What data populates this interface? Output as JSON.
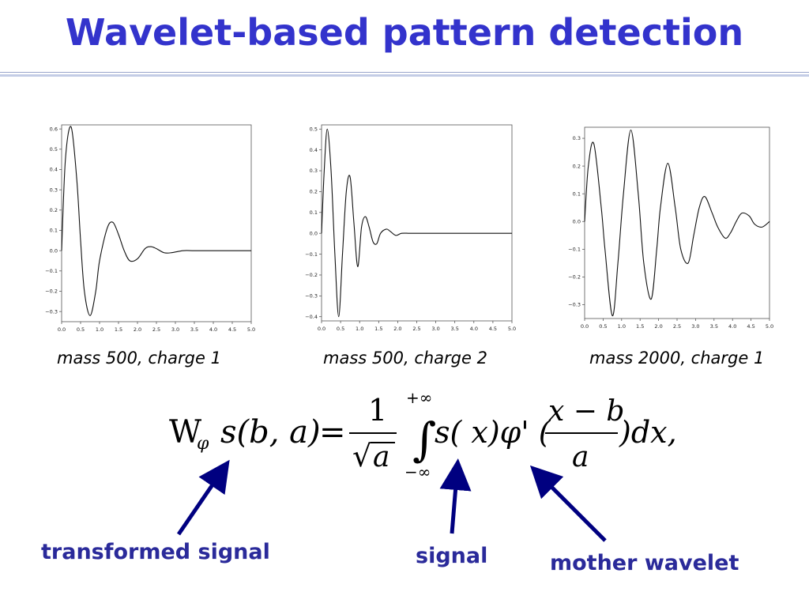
{
  "slide": {
    "title": "Wavelet-based pattern detection",
    "title_color": "#3333cc",
    "accent_color": "#000080"
  },
  "chart_data": [
    {
      "type": "line",
      "caption": "mass 500, charge 1",
      "xlim": [
        0.0,
        5.0
      ],
      "ylim": [
        -0.35,
        0.62
      ],
      "x_ticks": [
        "0.0",
        "0.5",
        "1.0",
        "1.5",
        "2.0",
        "2.5",
        "3.0",
        "3.5",
        "4.0",
        "4.5",
        "5.0"
      ],
      "y_ticks": [
        "0.6",
        "0.5",
        "0.4",
        "0.3",
        "0.2",
        "0.1",
        "0.0",
        "−0.1",
        "−0.2",
        "−0.3"
      ],
      "y_tick_values": [
        0.6,
        0.5,
        0.4,
        0.3,
        0.2,
        0.1,
        0.0,
        -0.1,
        -0.2,
        -0.3
      ],
      "x": [
        0.0,
        0.1,
        0.25,
        0.4,
        0.5,
        0.6,
        0.75,
        0.9,
        1.0,
        1.2,
        1.35,
        1.5,
        1.65,
        1.8,
        2.0,
        2.2,
        2.35,
        2.5,
        2.7,
        2.9,
        3.2,
        3.5,
        4.0,
        4.5,
        5.0
      ],
      "y": [
        0.0,
        0.45,
        0.61,
        0.35,
        0.05,
        -0.2,
        -0.32,
        -0.2,
        -0.05,
        0.11,
        0.14,
        0.08,
        0.0,
        -0.05,
        -0.04,
        0.01,
        0.02,
        0.01,
        -0.01,
        -0.01,
        0.0,
        0.0,
        0.0,
        0.0,
        0.0
      ]
    },
    {
      "type": "line",
      "caption": "mass 500, charge 2",
      "xlim": [
        0.0,
        5.0
      ],
      "ylim": [
        -0.42,
        0.52
      ],
      "x_ticks": [
        "0.0",
        "0.5",
        "1.0",
        "1.5",
        "2.0",
        "2.5",
        "3.0",
        "3.5",
        "4.0",
        "4.5",
        "5.0"
      ],
      "y_ticks": [
        "0.5",
        "0.4",
        "0.3",
        "0.2",
        "0.1",
        "0.0",
        "−0.1",
        "−0.2",
        "−0.3",
        "−0.4"
      ],
      "y_tick_values": [
        0.5,
        0.4,
        0.3,
        0.2,
        0.1,
        0.0,
        -0.1,
        -0.2,
        -0.3,
        -0.4
      ],
      "x": [
        0.0,
        0.07,
        0.15,
        0.25,
        0.35,
        0.45,
        0.55,
        0.65,
        0.75,
        0.85,
        0.95,
        1.05,
        1.15,
        1.25,
        1.35,
        1.45,
        1.55,
        1.7,
        1.8,
        1.95,
        2.1,
        2.3,
        2.5,
        3.0,
        3.5,
        4.0,
        5.0
      ],
      "y": [
        0.0,
        0.3,
        0.5,
        0.3,
        -0.1,
        -0.4,
        -0.1,
        0.2,
        0.27,
        0.05,
        -0.16,
        0.03,
        0.08,
        0.03,
        -0.04,
        -0.05,
        0.0,
        0.02,
        0.01,
        -0.01,
        0.0,
        0.0,
        0.0,
        0.0,
        0.0,
        0.0,
        0.0
      ]
    },
    {
      "type": "line",
      "caption": "mass 2000, charge 1",
      "xlim": [
        0.0,
        5.0
      ],
      "ylim": [
        -0.35,
        0.34
      ],
      "x_ticks": [
        "0.0",
        "0.5",
        "1.0",
        "1.5",
        "2.0",
        "2.5",
        "3.0",
        "3.5",
        "4.0",
        "4.5",
        "5.0"
      ],
      "y_ticks": [
        "0.3",
        "0.2",
        "0.1",
        "0.0",
        "−0.1",
        "−0.2",
        "−0.3"
      ],
      "y_tick_values": [
        0.3,
        0.2,
        0.1,
        0.0,
        -0.1,
        -0.2,
        -0.3
      ],
      "x": [
        0.0,
        0.1,
        0.25,
        0.45,
        0.55,
        0.75,
        0.9,
        1.05,
        1.25,
        1.45,
        1.6,
        1.8,
        1.95,
        2.05,
        2.25,
        2.45,
        2.6,
        2.8,
        2.95,
        3.1,
        3.25,
        3.45,
        3.6,
        3.8,
        3.95,
        4.1,
        4.25,
        4.45,
        4.6,
        4.8,
        5.0
      ],
      "y": [
        0.0,
        0.2,
        0.28,
        0.05,
        -0.1,
        -0.34,
        -0.15,
        0.1,
        0.33,
        0.1,
        -0.15,
        -0.28,
        -0.1,
        0.05,
        0.21,
        0.05,
        -0.1,
        -0.15,
        -0.05,
        0.05,
        0.09,
        0.03,
        -0.02,
        -0.06,
        -0.04,
        0.0,
        0.03,
        0.02,
        -0.01,
        -0.02,
        0.0
      ]
    }
  ],
  "formula": {
    "lhs": "W",
    "lhs_sub": "φ",
    "lhs_args": "s(b, a)",
    "equals": "=",
    "frac_num": "1",
    "sqrt_sym": "√",
    "frac_den": "a",
    "int_upper": "+∞",
    "int_lower": "−∞",
    "integral": "∫",
    "integrand": "s( x)φ' (",
    "inner_num": "x − b",
    "inner_den": "a",
    "tail": ")dx,"
  },
  "annotations": {
    "transformed": "transformed signal",
    "signal": "signal",
    "mother": "mother wavelet"
  }
}
